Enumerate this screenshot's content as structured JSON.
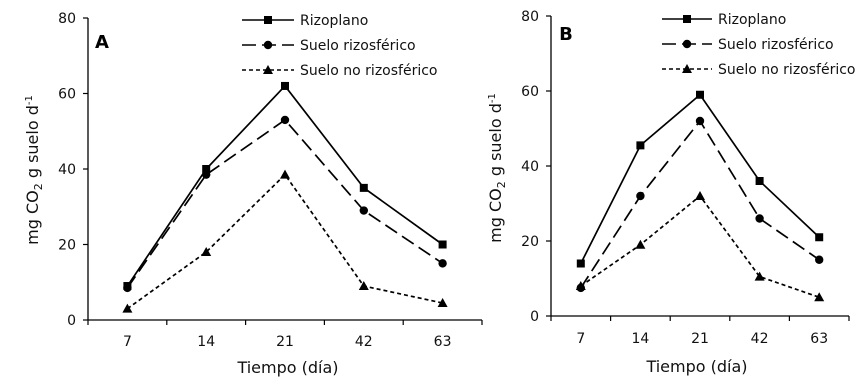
{
  "colors": {
    "ink": "#000000",
    "background": "#ffffff"
  },
  "chart_data": [
    {
      "type": "line",
      "panel_label": "A",
      "categories": [
        "7",
        "14",
        "21",
        "42",
        "63"
      ],
      "series": [
        {
          "name": "Rizoplano",
          "marker": "square",
          "dash": "solid",
          "values": [
            9,
            40,
            62,
            35,
            20
          ]
        },
        {
          "name": "Suelo rizosférico",
          "marker": "circle",
          "dash": "long-dash",
          "values": [
            8.5,
            38.5,
            53,
            29,
            15
          ]
        },
        {
          "name": "Suelo no rizosférico",
          "marker": "triangle",
          "dash": "short-dash",
          "values": [
            3,
            18,
            38.5,
            9,
            4.5
          ]
        }
      ],
      "xlabel": "Tiempo (día)",
      "ylabel_main": "mg CO",
      "ylabel_sub": "2",
      "ylabel_mid": " g suelo d",
      "ylabel_sup": "-1",
      "ylim": [
        0,
        80
      ],
      "yticks": [
        "0",
        "20",
        "40",
        "60",
        "80"
      ],
      "legend": "top-right",
      "grid": false
    },
    {
      "type": "line",
      "panel_label": "B",
      "categories": [
        "7",
        "14",
        "21",
        "42",
        "63"
      ],
      "series": [
        {
          "name": "Rizoplano",
          "marker": "square",
          "dash": "solid",
          "values": [
            14,
            45.5,
            59,
            36,
            21
          ]
        },
        {
          "name": "Suelo rizosférico",
          "marker": "circle",
          "dash": "long-dash",
          "values": [
            7.5,
            32,
            52,
            26,
            15
          ]
        },
        {
          "name": "Suelo no rizosférico",
          "marker": "triangle",
          "dash": "short-dash",
          "values": [
            8,
            19,
            32,
            10.5,
            5
          ]
        }
      ],
      "xlabel": "Tiempo (día)",
      "ylabel_main": "mg CO",
      "ylabel_sub": "2",
      "ylabel_mid": " g suelo d",
      "ylabel_sup": "-1",
      "ylim": [
        0,
        80
      ],
      "yticks": [
        "0",
        "20",
        "40",
        "60",
        "80"
      ],
      "legend": "top-right",
      "grid": false
    }
  ]
}
